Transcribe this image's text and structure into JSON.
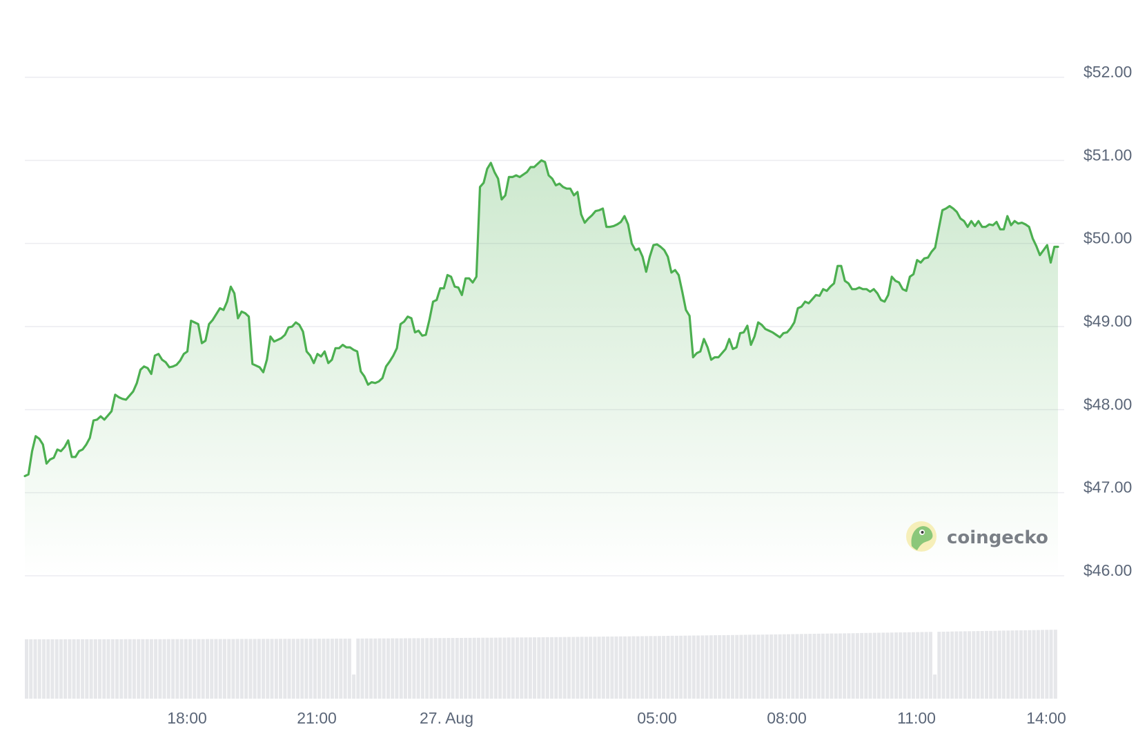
{
  "colors": {
    "line": "#4caf50",
    "area_top": "#4caf50",
    "grid": "#ececf0",
    "tick_text": "#5b6678",
    "volume": "#e6e7ea",
    "brand_text": "#7a7f86"
  },
  "brand": {
    "name": "coingecko",
    "icon": "gecko-logo-icon"
  },
  "chart_data": {
    "type": "line",
    "title": "",
    "xlabel": "",
    "ylabel": "",
    "x_unit": "hours since 15:00 (26 Aug)",
    "ylim": [
      46,
      52.1
    ],
    "grid": true,
    "y_ticks": [
      {
        "value": 52,
        "label": "$52.00"
      },
      {
        "value": 51,
        "label": "$51.00"
      },
      {
        "value": 50,
        "label": "$50.00"
      },
      {
        "value": 49,
        "label": "$49.00"
      },
      {
        "value": 48,
        "label": "$48.00"
      },
      {
        "value": 47,
        "label": "$47.00"
      },
      {
        "value": 46,
        "label": "$46.00"
      }
    ],
    "x_ticks": [
      {
        "label": "18:00"
      },
      {
        "label": "21:00"
      },
      {
        "label": "27. Aug"
      },
      {
        "label": "05:00"
      },
      {
        "label": "08:00"
      },
      {
        "label": "11:00"
      },
      {
        "label": "14:00"
      }
    ],
    "series": [
      {
        "name": "",
        "values": [
          47.2,
          47.22,
          47.5,
          47.68,
          47.65,
          47.58,
          47.35,
          47.4,
          47.42,
          47.52,
          47.5,
          47.55,
          47.63,
          47.43,
          47.43,
          47.5,
          47.52,
          47.58,
          47.66,
          47.87,
          47.88,
          47.92,
          47.88,
          47.93,
          47.98,
          48.18,
          48.15,
          48.13,
          48.12,
          48.17,
          48.22,
          48.32,
          48.48,
          48.52,
          48.5,
          48.43,
          48.65,
          48.67,
          48.6,
          48.57,
          48.51,
          48.52,
          48.54,
          48.59,
          48.67,
          48.7,
          49.07,
          49.05,
          49.03,
          48.8,
          48.83,
          49.03,
          49.08,
          49.15,
          49.22,
          49.2,
          49.3,
          49.48,
          49.4,
          49.1,
          49.18,
          49.16,
          49.12,
          48.55,
          48.53,
          48.51,
          48.45,
          48.6,
          48.88,
          48.82,
          48.84,
          48.86,
          48.9,
          48.99,
          49.0,
          49.05,
          49.02,
          48.94,
          48.7,
          48.65,
          48.56,
          48.67,
          48.64,
          48.7,
          48.56,
          48.6,
          48.74,
          48.74,
          48.78,
          48.75,
          48.75,
          48.72,
          48.7,
          48.46,
          48.4,
          48.3,
          48.33,
          48.32,
          48.34,
          48.38,
          48.52,
          48.58,
          48.65,
          48.74,
          49.03,
          49.06,
          49.12,
          49.1,
          48.93,
          48.95,
          48.89,
          48.9,
          49.08,
          49.3,
          49.32,
          49.46,
          49.46,
          49.62,
          49.6,
          49.48,
          49.47,
          49.38,
          49.58,
          49.58,
          49.53,
          49.6,
          50.68,
          50.73,
          50.9,
          50.97,
          50.86,
          50.78,
          50.53,
          50.58,
          50.8,
          50.8,
          50.82,
          50.8,
          50.83,
          50.86,
          50.92,
          50.92,
          50.96,
          51.0,
          50.98,
          50.82,
          50.78,
          50.7,
          50.72,
          50.68,
          50.66,
          50.66,
          50.58,
          50.62,
          50.35,
          50.25,
          50.3,
          50.34,
          50.39,
          50.4,
          50.42,
          50.2,
          50.2,
          50.21,
          50.23,
          50.26,
          50.33,
          50.23,
          50.0,
          49.92,
          49.94,
          49.84,
          49.66,
          49.84,
          49.98,
          49.99,
          49.96,
          49.92,
          49.84,
          49.65,
          49.68,
          49.62,
          49.42,
          49.2,
          49.13,
          48.63,
          48.68,
          48.7,
          48.85,
          48.75,
          48.6,
          48.63,
          48.63,
          48.68,
          48.73,
          48.85,
          48.73,
          48.75,
          48.92,
          48.93,
          49.01,
          48.78,
          48.88,
          49.05,
          49.02,
          48.97,
          48.95,
          48.93,
          48.9,
          48.87,
          48.92,
          48.93,
          48.98,
          49.05,
          49.22,
          49.24,
          49.3,
          49.28,
          49.33,
          49.38,
          49.37,
          49.45,
          49.43,
          49.48,
          49.52,
          49.73,
          49.73,
          49.55,
          49.52,
          49.45,
          49.45,
          49.47,
          49.45,
          49.45,
          49.42,
          49.45,
          49.4,
          49.32,
          49.3,
          49.38,
          49.6,
          49.55,
          49.53,
          49.45,
          49.43,
          49.6,
          49.63,
          49.8,
          49.77,
          49.82,
          49.83,
          49.9,
          49.95,
          50.18,
          50.4,
          50.42,
          50.45,
          50.42,
          50.38,
          50.3,
          50.27,
          50.2,
          50.27,
          50.21,
          50.27,
          50.2,
          50.2,
          50.23,
          50.22,
          50.26,
          50.17,
          50.17,
          50.33,
          50.22,
          50.27,
          50.24,
          50.25,
          50.23,
          50.2,
          50.06,
          49.97,
          49.86,
          49.92,
          49.98,
          49.77,
          49.96,
          49.96
        ]
      }
    ],
    "x_range": [
      0,
      23.22
    ]
  }
}
